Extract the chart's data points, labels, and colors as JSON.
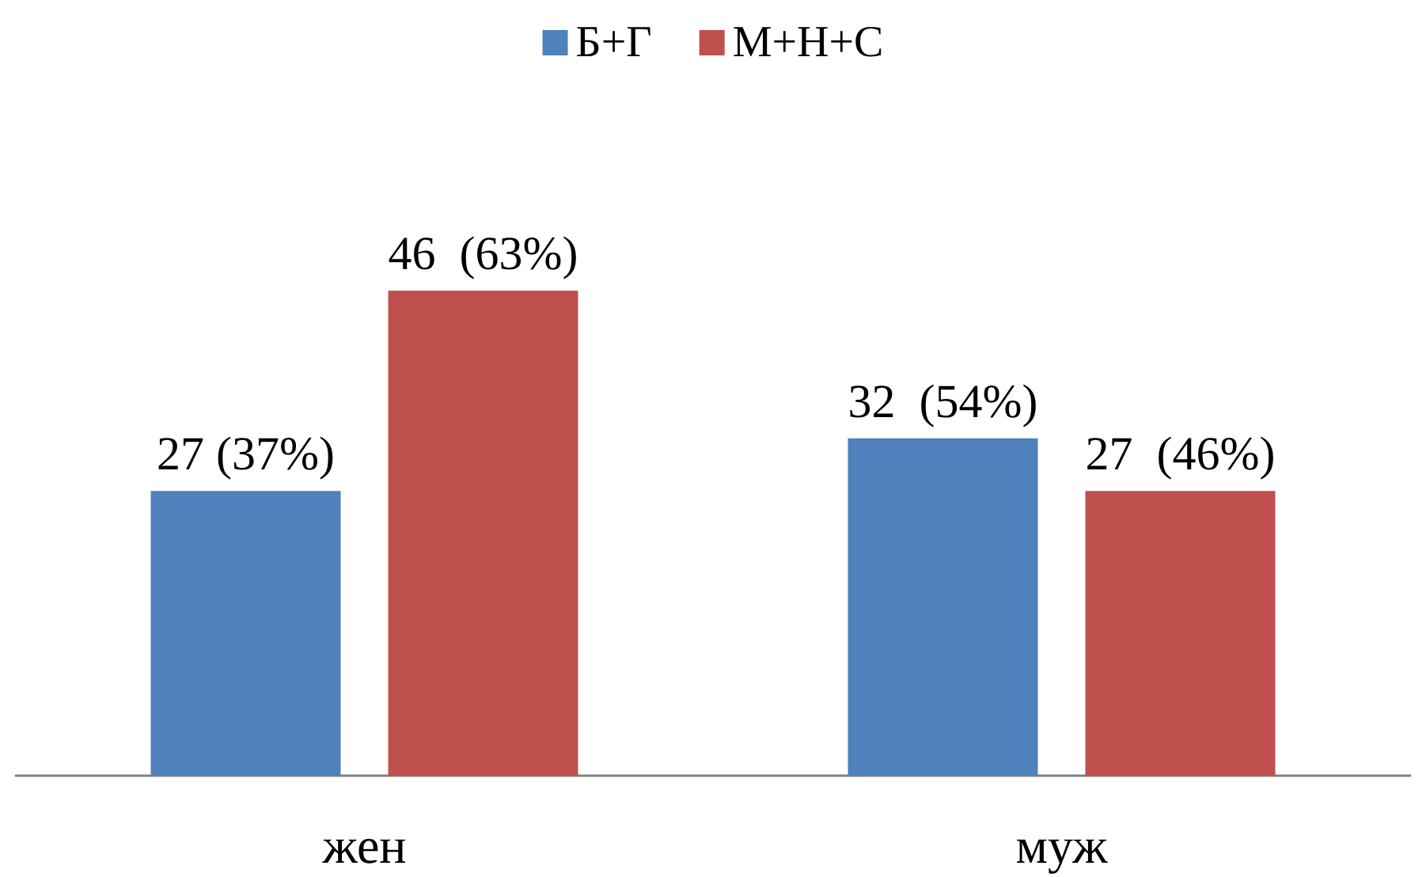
{
  "chart_data": {
    "type": "bar",
    "categories": [
      "жен",
      "муж"
    ],
    "series": [
      {
        "name": "Б+Г",
        "color": "#4f81bd",
        "values": [
          27,
          32
        ],
        "value_labels": [
          "27 (37%)",
          "32  (54%)"
        ]
      },
      {
        "name": "М+Н+С",
        "color": "#c0504d",
        "values": [
          46,
          27
        ],
        "value_labels": [
          "46  (63%)",
          "27  (46%)"
        ]
      }
    ],
    "legend": "top",
    "grid": false,
    "tick_labels": "x"
  }
}
